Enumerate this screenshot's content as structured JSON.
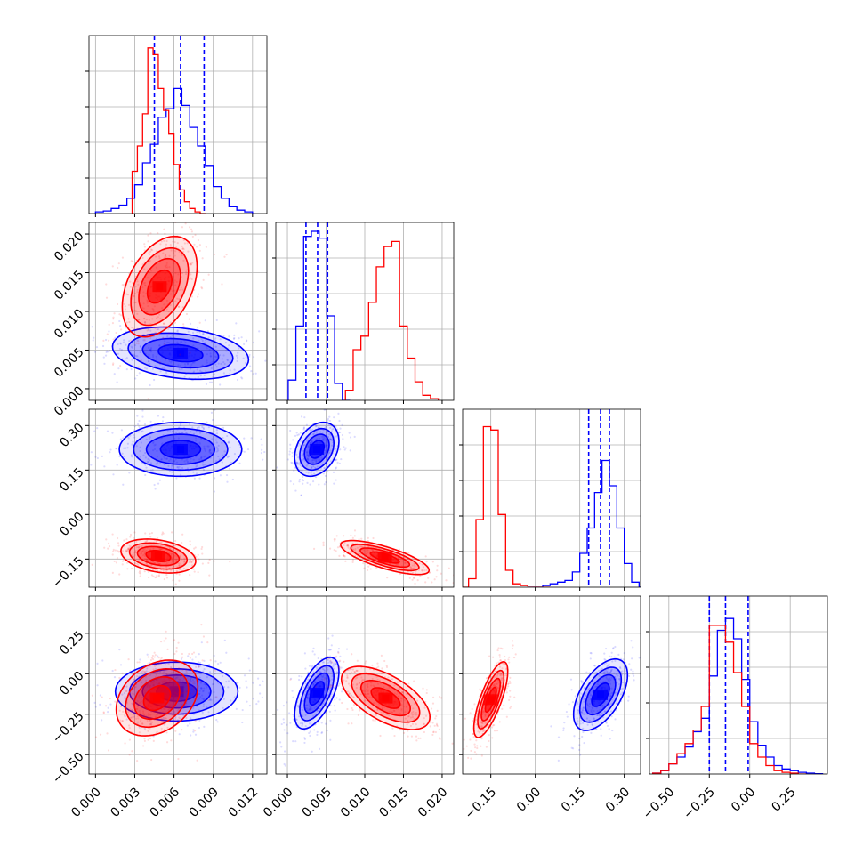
{
  "figure": {
    "colors": {
      "blue": "#0000ff",
      "red": "#ff0000",
      "grid": "#b0b0b0",
      "frame": "#000000"
    }
  },
  "chart_data": {
    "type": "corner",
    "grid": true,
    "series": [
      {
        "name": "",
        "color": "#0000ff",
        "hist": [
          {
            "x": [
              0.0,
              0.0006,
              0.0012,
              0.0018,
              0.0024,
              0.003,
              0.0036,
              0.0042,
              0.0048,
              0.0054,
              0.006,
              0.0066,
              0.0072,
              0.0078,
              0.0084,
              0.009,
              0.0096,
              0.0102,
              0.0108,
              0.0114
            ],
            "y": [
              0.01,
              0.015,
              0.03,
              0.05,
              0.09,
              0.17,
              0.3,
              0.41,
              0.57,
              0.62,
              0.74,
              0.64,
              0.51,
              0.4,
              0.28,
              0.16,
              0.09,
              0.04,
              0.02,
              0.01
            ]
          },
          {
            "x": [
              0.0001,
              0.0011,
              0.0021,
              0.0031,
              0.0041,
              0.0051,
              0.0061,
              0.0071
            ],
            "y": [
              0.12,
              0.44,
              0.97,
              1.0,
              0.96,
              0.5,
              0.1,
              0.0
            ]
          },
          {
            "x": [
              -0.025,
              0.0,
              0.025,
              0.05,
              0.075,
              0.1,
              0.125,
              0.15,
              0.175,
              0.2,
              0.225,
              0.25,
              0.275,
              0.3,
              0.325,
              0.35
            ],
            "y": [
              0.0,
              0.0,
              0.01,
              0.02,
              0.03,
              0.04,
              0.09,
              0.2,
              0.35,
              0.56,
              0.75,
              0.6,
              0.35,
              0.14,
              0.03,
              0.0
            ]
          },
          {
            "x": [
              -0.6,
              -0.55,
              -0.5,
              -0.45,
              -0.4,
              -0.35,
              -0.3,
              -0.25,
              -0.2,
              -0.15,
              -0.1,
              -0.05,
              0.0,
              0.05,
              0.1,
              0.15,
              0.2,
              0.25,
              0.3,
              0.35,
              0.4
            ],
            "y": [
              0.005,
              0.02,
              0.06,
              0.1,
              0.16,
              0.25,
              0.33,
              0.58,
              0.85,
              0.92,
              0.8,
              0.56,
              0.31,
              0.17,
              0.1,
              0.05,
              0.03,
              0.02,
              0.01,
              0.005,
              0.002
            ]
          }
        ],
        "quantiles": [
          [
            0.0045,
            0.0065,
            0.0083
          ],
          [
            0.0024,
            0.0039,
            0.0052
          ],
          [
            0.18,
            0.22,
            0.25
          ],
          [
            -0.25,
            -0.15,
            -0.01
          ]
        ],
        "blobs": {
          "1_0": {
            "c": [
              0.0065,
              0.0046
            ],
            "s": [
              0.002,
              0.0013
            ],
            "r": -0.25
          },
          "2_0": {
            "c": [
              0.0065,
              0.22
            ],
            "s": [
              0.0018,
              0.035
            ],
            "r": 0.0
          },
          "2_1": {
            "c": [
              0.0038,
              0.22
            ],
            "s": [
              0.0011,
              0.035
            ],
            "r": 0.3
          },
          "3_0": {
            "c": [
              0.0062,
              -0.11
            ],
            "s": [
              0.0018,
              0.07
            ],
            "r": 0.0
          },
          "3_1": {
            "c": [
              0.0038,
              -0.12
            ],
            "s": [
              0.0011,
              0.085
            ],
            "r": 0.6
          },
          "3_2": {
            "c": [
              0.22,
              -0.13
            ],
            "s": [
              0.035,
              0.085
            ],
            "r": 0.55
          }
        }
      },
      {
        "name": "",
        "color": "#ff0000",
        "hist": [
          {
            "x": [
              0.0028,
              0.0032,
              0.0036,
              0.004,
              0.0044,
              0.0048,
              0.0052,
              0.0056,
              0.006,
              0.0064,
              0.0068,
              0.0072,
              0.0076,
              0.008
            ],
            "y": [
              0.25,
              0.4,
              0.59,
              0.98,
              0.94,
              0.74,
              0.61,
              0.47,
              0.29,
              0.14,
              0.07,
              0.03,
              0.01,
              0.0
            ]
          },
          {
            "x": [
              0.0075,
              0.0085,
              0.0095,
              0.0105,
              0.0115,
              0.0125,
              0.0135,
              0.0145,
              0.0155,
              0.0165,
              0.0175,
              0.0185
            ],
            "y": [
              0.06,
              0.3,
              0.38,
              0.58,
              0.79,
              0.91,
              0.94,
              0.44,
              0.25,
              0.11,
              0.03,
              0.01
            ]
          },
          {
            "x": [
              -0.25,
              -0.225,
              -0.2,
              -0.175,
              -0.15,
              -0.125,
              -0.1,
              -0.075,
              -0.05,
              -0.025,
              0.0,
              0.025
            ],
            "y": [
              0.0,
              0.05,
              0.4,
              0.95,
              0.93,
              0.43,
              0.1,
              0.02,
              0.01,
              0.0,
              0.0,
              0.0
            ]
          },
          {
            "x": [
              -0.6,
              -0.55,
              -0.5,
              -0.45,
              -0.4,
              -0.35,
              -0.3,
              -0.25,
              -0.2,
              -0.15,
              -0.1,
              -0.05,
              0.0,
              0.05,
              0.1,
              0.15,
              0.2,
              0.25,
              0.3
            ],
            "y": [
              0.005,
              0.02,
              0.06,
              0.12,
              0.18,
              0.26,
              0.4,
              0.88,
              0.88,
              0.78,
              0.6,
              0.4,
              0.18,
              0.1,
              0.05,
              0.02,
              0.01,
              0.005,
              0.0
            ]
          }
        ],
        "blobs": {
          "1_0": {
            "c": [
              0.0049,
              0.0132
            ],
            "s": [
              0.0011,
              0.0025
            ],
            "r": 0.4
          },
          "2_0": {
            "c": [
              0.0048,
              -0.14
            ],
            "s": [
              0.0011,
              0.022
            ],
            "r": -0.3
          },
          "2_1": {
            "c": [
              0.0126,
              -0.145
            ],
            "s": [
              0.0022,
              0.022
            ],
            "r": -0.75
          },
          "3_0": {
            "c": [
              0.0047,
              -0.15
            ],
            "s": [
              0.0012,
              0.09
            ],
            "r": 0.3
          },
          "3_1": {
            "c": [
              0.0127,
              -0.15
            ],
            "s": [
              0.0022,
              0.075
            ],
            "r": -0.6
          },
          "3_2": {
            "c": [
              -0.15,
              -0.16
            ],
            "s": [
              0.022,
              0.09
            ],
            "r": 0.75
          }
        }
      }
    ],
    "axes": {
      "0": {
        "range": [
          -0.0005,
          0.0131
        ],
        "ticks": [
          0.0,
          0.003,
          0.006,
          0.009,
          0.012
        ],
        "labels": [
          "0.000",
          "0.003",
          "0.006",
          "0.009",
          "0.012"
        ]
      },
      "1": {
        "range": [
          -0.0015,
          0.0215
        ],
        "ticks": [
          0.0,
          0.005,
          0.01,
          0.015,
          0.02
        ],
        "labels": [
          "0.000",
          "0.005",
          "0.010",
          "0.015",
          "0.020"
        ]
      },
      "2": {
        "range": [
          -0.245,
          0.355
        ],
        "ticks": [
          -0.15,
          0.0,
          0.15,
          0.3
        ],
        "labels": [
          "−0.15",
          "0.00",
          "0.15",
          "0.30"
        ]
      },
      "3": {
        "range": [
          -0.62,
          0.48
        ],
        "ticks": [
          -0.5,
          -0.25,
          0.0,
          0.25
        ],
        "labels": [
          "−0.50",
          "−0.25",
          "0.00",
          "0.25"
        ]
      }
    }
  }
}
